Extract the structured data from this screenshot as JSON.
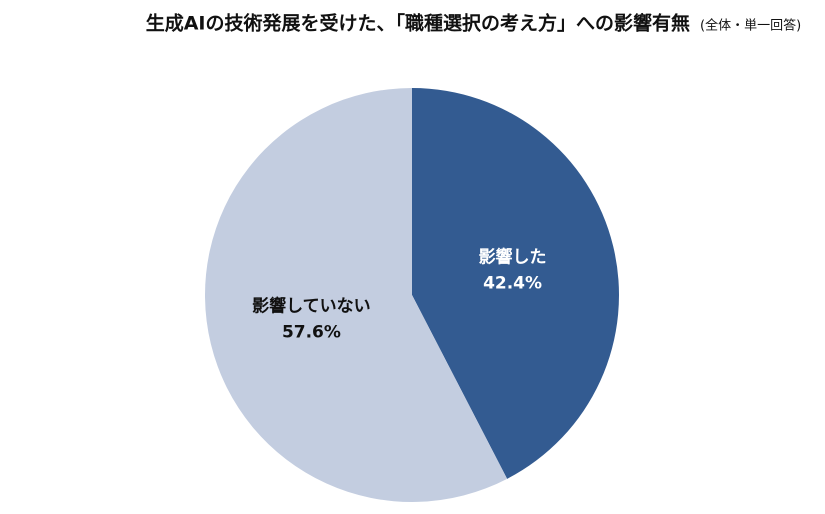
{
  "chart_data": {
    "type": "pie",
    "title": "生成AIの技術発展を受けた、「職種選択の考え方」への影響有無",
    "subtitle": "(全体・単一回答)",
    "categories": [
      "影響した",
      "影響していない"
    ],
    "values": [
      42.4,
      57.6
    ],
    "value_labels": [
      "42.4%",
      "57.6%"
    ],
    "colors": [
      "#335b91",
      "#c3cde0"
    ],
    "label_colors": [
      "#ffffff",
      "#111111"
    ]
  }
}
